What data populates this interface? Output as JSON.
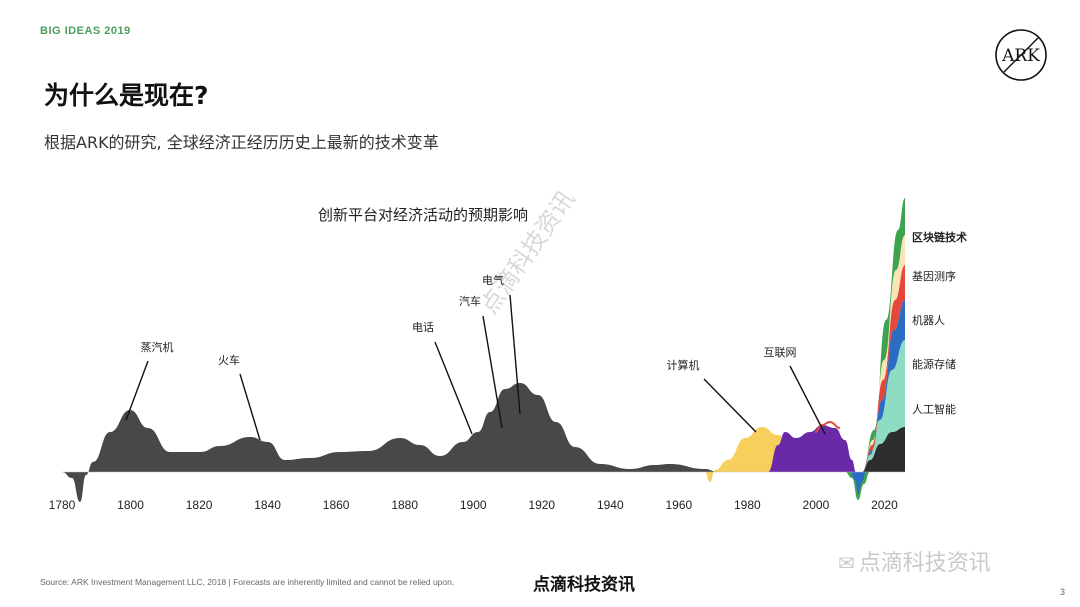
{
  "header": {
    "kicker": "BIG IDEAS 2019",
    "title": "为什么是现在?",
    "subtitle": "根据ARK的研究, 全球经济正经历历史上最新的技术变革",
    "logo_text": "ARK"
  },
  "chart_data": {
    "type": "area",
    "title": "创新平台对经济活动的预期影响",
    "xlabel": "",
    "ylabel": "",
    "x_ticks": [
      1780,
      1800,
      1820,
      1840,
      1860,
      1880,
      1900,
      1920,
      1940,
      1960,
      1980,
      2000,
      2020
    ],
    "xlim": [
      1780,
      2026
    ],
    "events": [
      {
        "label": "蒸汽机",
        "year": 1799
      },
      {
        "label": "火车",
        "year": 1838
      },
      {
        "label": "电话",
        "year": 1900
      },
      {
        "label": "汽车",
        "year": 1908
      },
      {
        "label": "电气",
        "year": 1914
      },
      {
        "label": "计算机",
        "year": 1987
      },
      {
        "label": "互联网",
        "year": 2006
      }
    ],
    "legend": [
      "区块链技术",
      "基因测序",
      "机器人",
      "能源存储",
      "人工智能"
    ],
    "colors": {
      "history": "#484848",
      "computer": "#f6cf5c",
      "internet": "#6a2aa8",
      "ai": "#8fdcc4",
      "energy": "#2b6cc4",
      "robotics": "#e4473c",
      "genome": "#f8e4b4",
      "blockchain": "#3da34e",
      "dark": "#2e2e2e"
    }
  },
  "watermark": "点滴科技资讯",
  "footer": {
    "source": "Source: ARK Investment Management LLC, 2018 | Forecasts are inherently limited and cannot be relied upon.",
    "credit": "点滴科技资讯",
    "wechat": "点滴科技资讯",
    "wechat_icon": "wechat-icon",
    "page": "3"
  }
}
